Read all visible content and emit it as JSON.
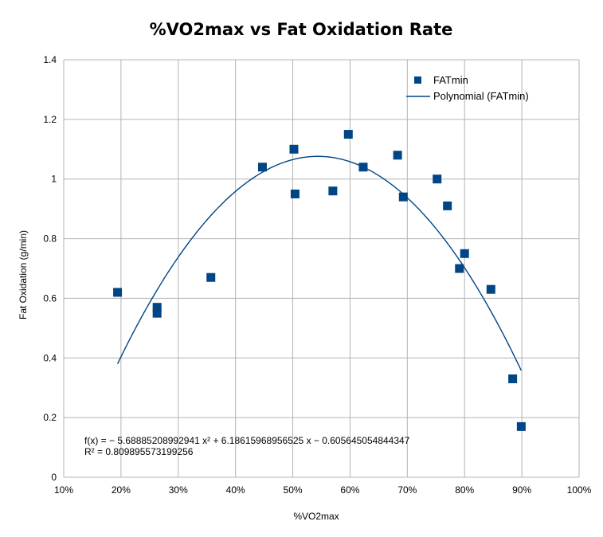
{
  "chart_data": {
    "type": "scatter",
    "title": "%VO2max vs Fat Oxidation Rate",
    "xlabel": "%VO2max",
    "ylabel": "Fat Oxidation (g/min)",
    "xlim": [
      0.1,
      1.0
    ],
    "ylim": [
      0,
      1.4
    ],
    "x_ticks": [
      0.1,
      0.2,
      0.3,
      0.4,
      0.5,
      0.6,
      0.7,
      0.8,
      0.9,
      1.0
    ],
    "x_tick_labels": [
      "10%",
      "20%",
      "30%",
      "40%",
      "50%",
      "60%",
      "70%",
      "80%",
      "90%",
      "100%"
    ],
    "y_ticks": [
      0,
      0.2,
      0.4,
      0.6,
      0.8,
      1,
      1.2,
      1.4
    ],
    "y_tick_labels": [
      "0",
      "0.2",
      "0.4",
      "0.6",
      "0.8",
      "1",
      "1.2",
      "1.4"
    ],
    "grid": true,
    "legend_position": "top-right",
    "series": [
      {
        "name": "FATmin",
        "marker": "square",
        "color": "#004586",
        "points": [
          [
            0.194,
            0.62
          ],
          [
            0.263,
            0.57
          ],
          [
            0.263,
            0.55
          ],
          [
            0.357,
            0.67
          ],
          [
            0.447,
            1.04
          ],
          [
            0.502,
            1.1
          ],
          [
            0.504,
            0.95
          ],
          [
            0.57,
            0.96
          ],
          [
            0.597,
            1.15
          ],
          [
            0.623,
            1.04
          ],
          [
            0.683,
            1.08
          ],
          [
            0.693,
            0.94
          ],
          [
            0.752,
            1.0
          ],
          [
            0.77,
            0.91
          ],
          [
            0.791,
            0.7
          ],
          [
            0.8,
            0.75
          ],
          [
            0.846,
            0.63
          ],
          [
            0.884,
            0.33
          ],
          [
            0.899,
            0.17
          ]
        ]
      },
      {
        "name": "Polynomial (FATmin)",
        "type": "trendline",
        "color": "#004586",
        "coefficients": {
          "a": -5.68885208992941,
          "b": 6.18615968956525,
          "c": -0.605645054844347
        },
        "x_range": [
          0.194,
          0.899
        ]
      }
    ],
    "annotations": {
      "equation": "f(x) = − 5.68885208992941 x² + 6.18615968956525 x − 0.605645054844347",
      "r_squared": "R² = 0.809895573199256"
    }
  }
}
